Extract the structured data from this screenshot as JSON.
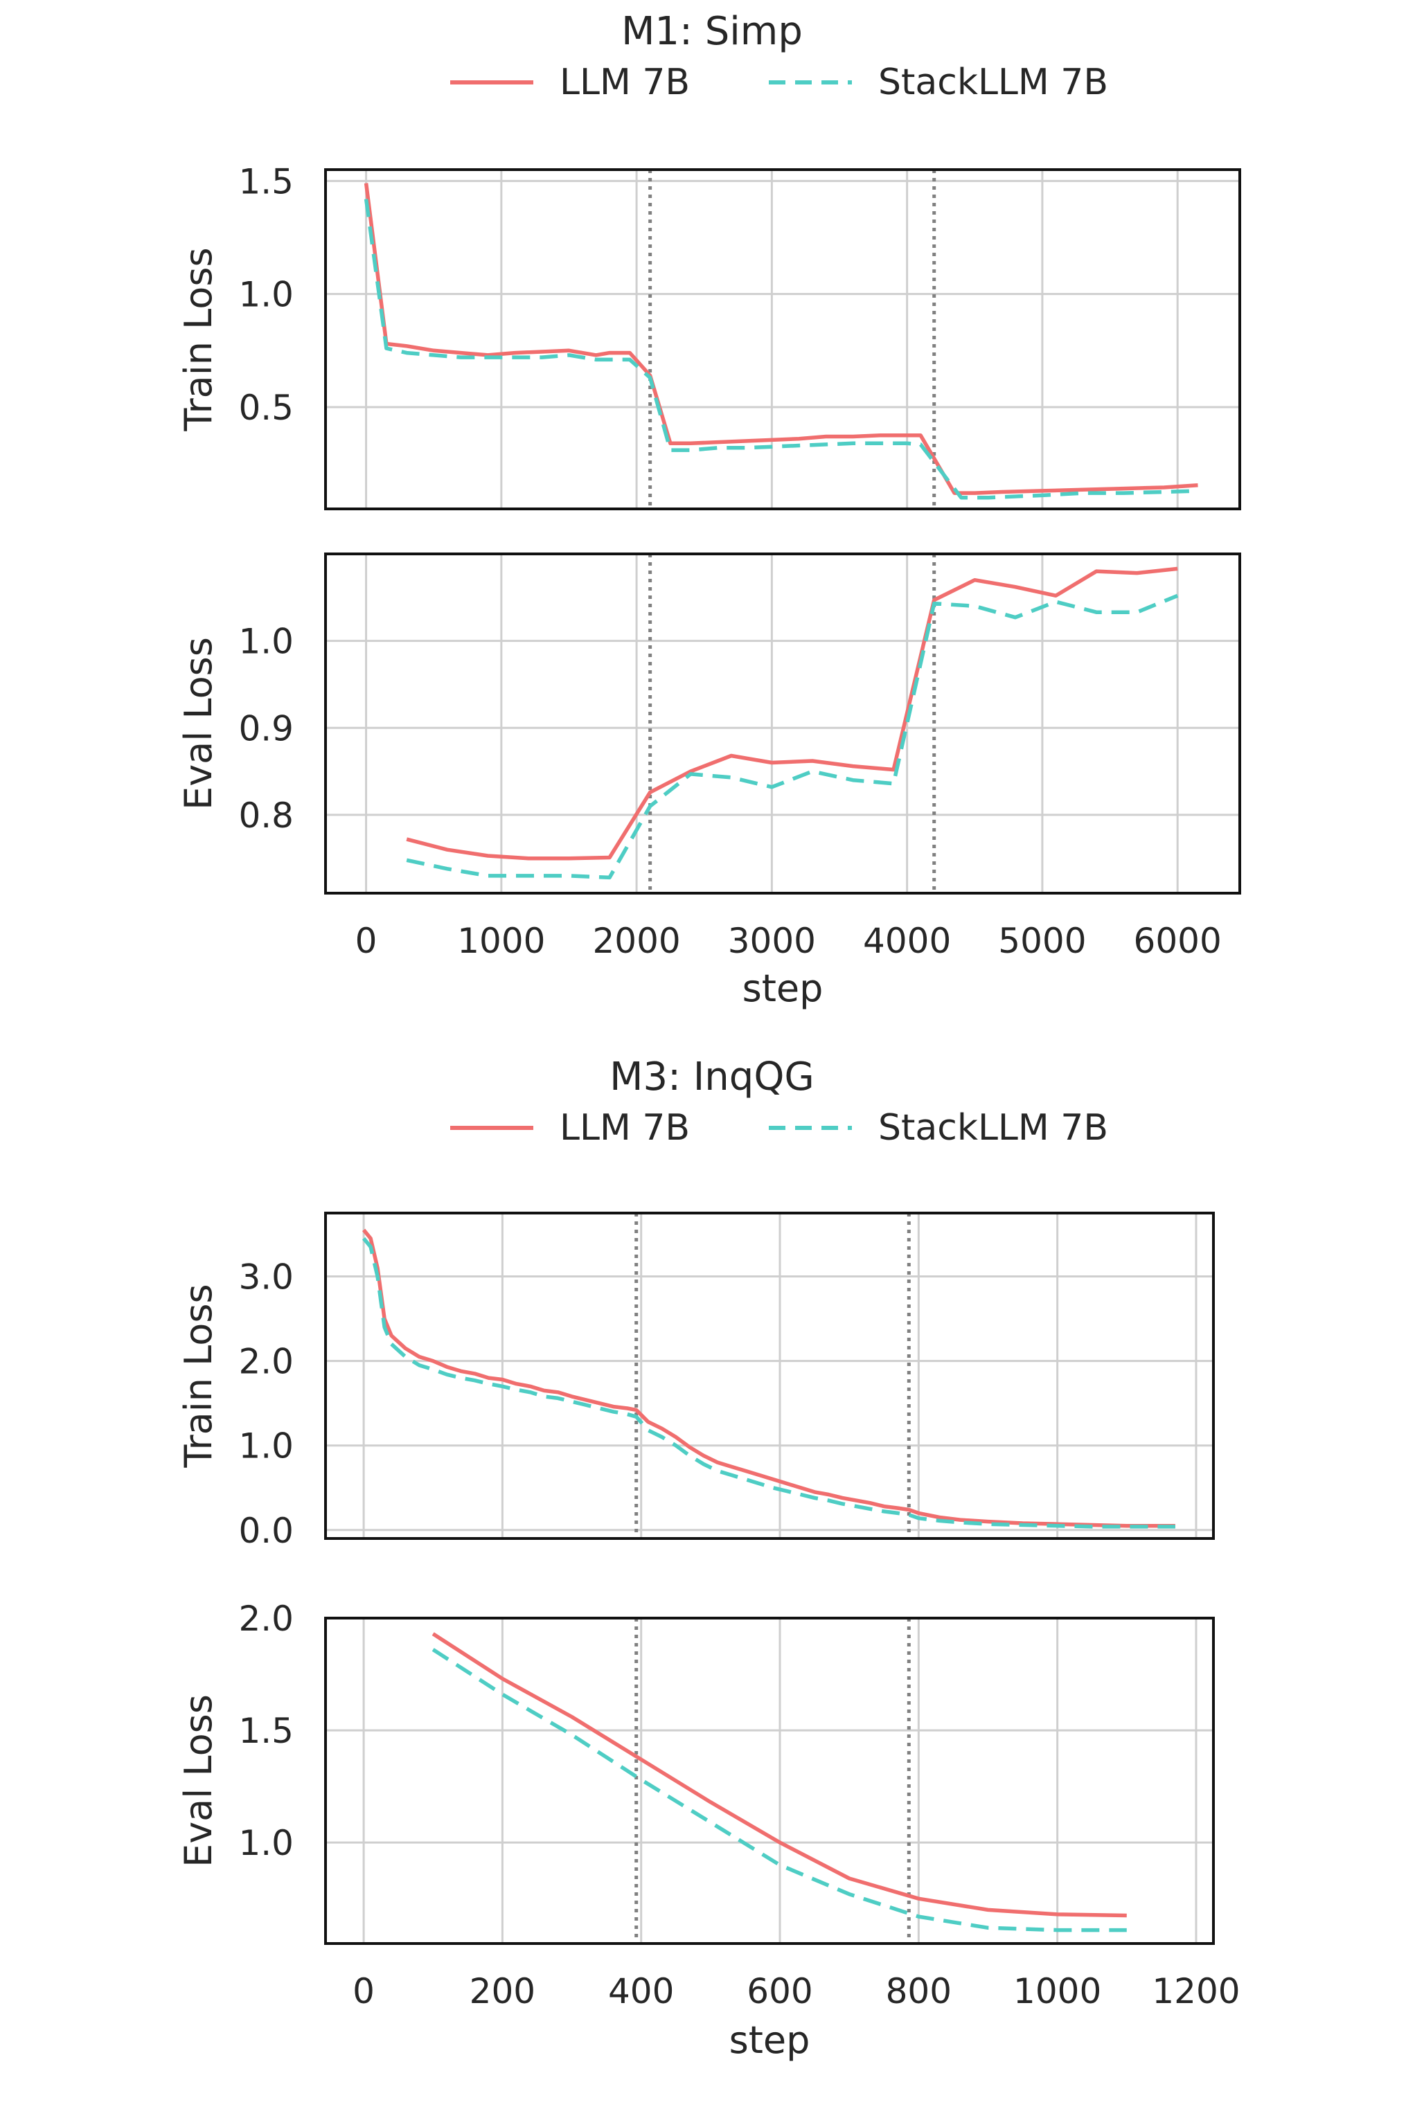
{
  "colors": {
    "llm": "#f06e6e",
    "stack": "#4ecdc4",
    "phase_line": "#808080",
    "grid": "#cfcfcf"
  },
  "chart_data": [
    {
      "type": "line",
      "title": "M1: Simp",
      "legend": {
        "placement": "top-center",
        "entries": [
          "LLM 7B",
          "StackLLM 7B"
        ]
      },
      "xlabel": "step",
      "xlim": [
        -300,
        6460
      ],
      "xticks": [
        "0",
        "1000",
        "2000",
        "3000",
        "4000",
        "5000",
        "6000"
      ],
      "phase_boundaries": [
        2100,
        4200
      ],
      "grid": true,
      "panels": [
        {
          "ylabel": "Train Loss",
          "ylim": [
            0.05,
            1.55
          ],
          "yticks": [
            "0.5",
            "1.0",
            "1.5"
          ],
          "series": [
            {
              "name": "LLM 7B",
              "x": [
                0,
                150,
                300,
                500,
                700,
                900,
                1100,
                1300,
                1500,
                1700,
                1800,
                1950,
                2100,
                2250,
                2400,
                2600,
                2800,
                3000,
                3200,
                3400,
                3600,
                3800,
                4000,
                4100,
                4350,
                4500,
                4700,
                5000,
                5300,
                5600,
                5900,
                6150
              ],
              "values": [
                1.49,
                0.78,
                0.77,
                0.75,
                0.74,
                0.73,
                0.74,
                0.745,
                0.75,
                0.73,
                0.74,
                0.74,
                0.64,
                0.34,
                0.34,
                0.345,
                0.35,
                0.355,
                0.36,
                0.37,
                0.37,
                0.375,
                0.375,
                0.375,
                0.12,
                0.12,
                0.125,
                0.13,
                0.135,
                0.14,
                0.145,
                0.155
              ]
            },
            {
              "name": "StackLLM 7B",
              "x": [
                0,
                150,
                300,
                500,
                700,
                900,
                1100,
                1300,
                1500,
                1700,
                1800,
                1950,
                2100,
                2250,
                2400,
                2600,
                2800,
                3000,
                3200,
                3400,
                3600,
                3800,
                4000,
                4100,
                4400,
                4600,
                4800,
                5000,
                5300,
                5600,
                5900,
                6150
              ],
              "values": [
                1.42,
                0.76,
                0.74,
                0.73,
                0.72,
                0.72,
                0.72,
                0.72,
                0.73,
                0.71,
                0.71,
                0.71,
                0.63,
                0.31,
                0.31,
                0.32,
                0.32,
                0.325,
                0.33,
                0.335,
                0.34,
                0.34,
                0.34,
                0.335,
                0.1,
                0.1,
                0.105,
                0.11,
                0.12,
                0.12,
                0.125,
                0.13
              ]
            }
          ]
        },
        {
          "ylabel": "Eval Loss",
          "ylim": [
            0.71,
            1.1
          ],
          "yticks": [
            "0.8",
            "0.9",
            "1.0"
          ],
          "series": [
            {
              "name": "LLM 7B",
              "x": [
                300,
                600,
                900,
                1200,
                1500,
                1800,
                2100,
                2400,
                2700,
                3000,
                3300,
                3600,
                3900,
                4200,
                4500,
                4800,
                5100,
                5400,
                5700,
                6000
              ],
              "values": [
                0.772,
                0.76,
                0.753,
                0.75,
                0.75,
                0.751,
                0.826,
                0.85,
                0.868,
                0.86,
                0.862,
                0.856,
                0.852,
                1.047,
                1.07,
                1.062,
                1.052,
                1.08,
                1.078,
                1.083
              ]
            },
            {
              "name": "StackLLM 7B",
              "x": [
                300,
                600,
                900,
                1200,
                1500,
                1800,
                2100,
                2400,
                2700,
                3000,
                3300,
                3600,
                3900,
                4200,
                4500,
                4800,
                5100,
                5400,
                5700,
                6000
              ],
              "values": [
                0.748,
                0.738,
                0.73,
                0.73,
                0.73,
                0.728,
                0.81,
                0.847,
                0.843,
                0.832,
                0.85,
                0.84,
                0.836,
                1.043,
                1.04,
                1.027,
                1.045,
                1.033,
                1.033,
                1.052
              ]
            }
          ]
        }
      ]
    },
    {
      "type": "line",
      "title": "M3: InqQG",
      "legend": {
        "placement": "top-center",
        "entries": [
          "LLM 7B",
          "StackLLM 7B"
        ]
      },
      "xlabel": "step",
      "xlim": [
        -55,
        1225
      ],
      "xticks": [
        "0",
        "200",
        "400",
        "600",
        "800",
        "1000",
        "1200"
      ],
      "phase_boundaries": [
        393,
        786
      ],
      "grid": true,
      "panels": [
        {
          "ylabel": "Train Loss",
          "ylim": [
            -0.1,
            3.75
          ],
          "yticks": [
            "0.0",
            "1.0",
            "2.0",
            "3.0"
          ],
          "series": [
            {
              "name": "LLM 7B",
              "x": [
                0,
                10,
                20,
                30,
                40,
                60,
                80,
                100,
                120,
                140,
                160,
                180,
                200,
                220,
                240,
                260,
                280,
                300,
                320,
                340,
                360,
                380,
                393,
                410,
                430,
                450,
                470,
                490,
                510,
                530,
                550,
                570,
                590,
                610,
                630,
                650,
                670,
                690,
                710,
                730,
                750,
                770,
                786,
                800,
                830,
                860,
                900,
                950,
                1000,
                1050,
                1100,
                1170
              ],
              "values": [
                3.55,
                3.45,
                3.1,
                2.5,
                2.3,
                2.15,
                2.05,
                2.0,
                1.93,
                1.88,
                1.85,
                1.8,
                1.78,
                1.73,
                1.7,
                1.65,
                1.63,
                1.58,
                1.54,
                1.5,
                1.46,
                1.44,
                1.42,
                1.28,
                1.2,
                1.1,
                0.98,
                0.88,
                0.8,
                0.75,
                0.7,
                0.65,
                0.6,
                0.55,
                0.5,
                0.45,
                0.42,
                0.38,
                0.35,
                0.32,
                0.28,
                0.26,
                0.24,
                0.2,
                0.15,
                0.12,
                0.1,
                0.08,
                0.07,
                0.06,
                0.05,
                0.05
              ]
            },
            {
              "name": "StackLLM 7B",
              "x": [
                0,
                10,
                20,
                30,
                40,
                60,
                80,
                100,
                120,
                140,
                160,
                180,
                200,
                220,
                240,
                260,
                280,
                300,
                320,
                340,
                360,
                380,
                393,
                410,
                430,
                450,
                470,
                490,
                510,
                530,
                550,
                570,
                590,
                610,
                630,
                650,
                670,
                690,
                710,
                730,
                750,
                770,
                786,
                800,
                830,
                860,
                900,
                950,
                1000,
                1050,
                1100,
                1170
              ],
              "values": [
                3.45,
                3.35,
                3.0,
                2.4,
                2.2,
                2.05,
                1.95,
                1.9,
                1.84,
                1.8,
                1.77,
                1.73,
                1.7,
                1.66,
                1.63,
                1.58,
                1.56,
                1.52,
                1.48,
                1.44,
                1.4,
                1.37,
                1.34,
                1.18,
                1.1,
                1.0,
                0.88,
                0.78,
                0.7,
                0.65,
                0.6,
                0.55,
                0.5,
                0.46,
                0.42,
                0.38,
                0.35,
                0.31,
                0.28,
                0.25,
                0.22,
                0.2,
                0.18,
                0.14,
                0.11,
                0.09,
                0.07,
                0.06,
                0.05,
                0.04,
                0.04,
                0.04
              ]
            }
          ]
        },
        {
          "ylabel": "Eval Loss",
          "ylim": [
            0.55,
            2.0
          ],
          "yticks": [
            "1.0",
            "1.5",
            "2.0"
          ],
          "series": [
            {
              "name": "LLM 7B",
              "x": [
                100,
                200,
                300,
                400,
                500,
                600,
                700,
                800,
                900,
                1000,
                1100
              ],
              "values": [
                1.93,
                1.73,
                1.56,
                1.37,
                1.18,
                1.0,
                0.84,
                0.75,
                0.7,
                0.68,
                0.675
              ]
            },
            {
              "name": "StackLLM 7B",
              "x": [
                100,
                200,
                300,
                400,
                500,
                600,
                700,
                800,
                900,
                1000,
                1100
              ],
              "values": [
                1.86,
                1.66,
                1.48,
                1.28,
                1.09,
                0.9,
                0.77,
                0.67,
                0.62,
                0.61,
                0.61
              ]
            }
          ]
        }
      ]
    }
  ]
}
